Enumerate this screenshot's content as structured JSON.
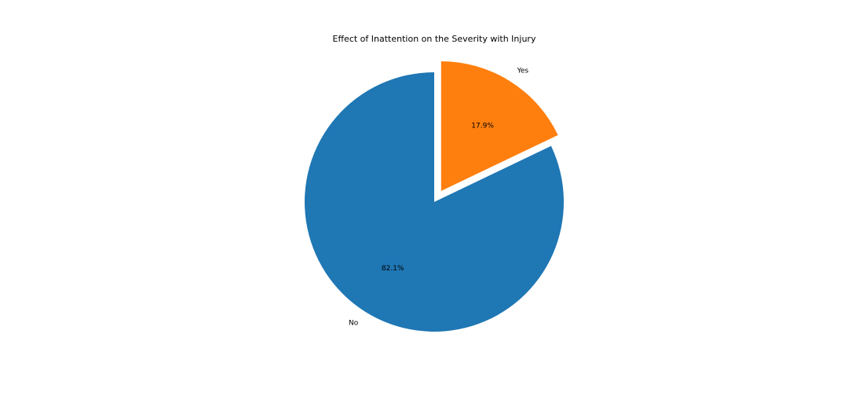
{
  "chart_data": {
    "type": "pie",
    "title": "Effect of Inattention on the Severity with Injury",
    "slices": [
      {
        "label": "No",
        "value": 82.1,
        "pct_label": "82.1%",
        "color": "#1f77b4",
        "exploded": false
      },
      {
        "label": "Yes",
        "value": 17.9,
        "pct_label": "17.9%",
        "color": "#ff7f0e",
        "exploded": true
      }
    ],
    "start_angle_deg": 90,
    "direction": "counterclockwise",
    "legend": "none"
  }
}
